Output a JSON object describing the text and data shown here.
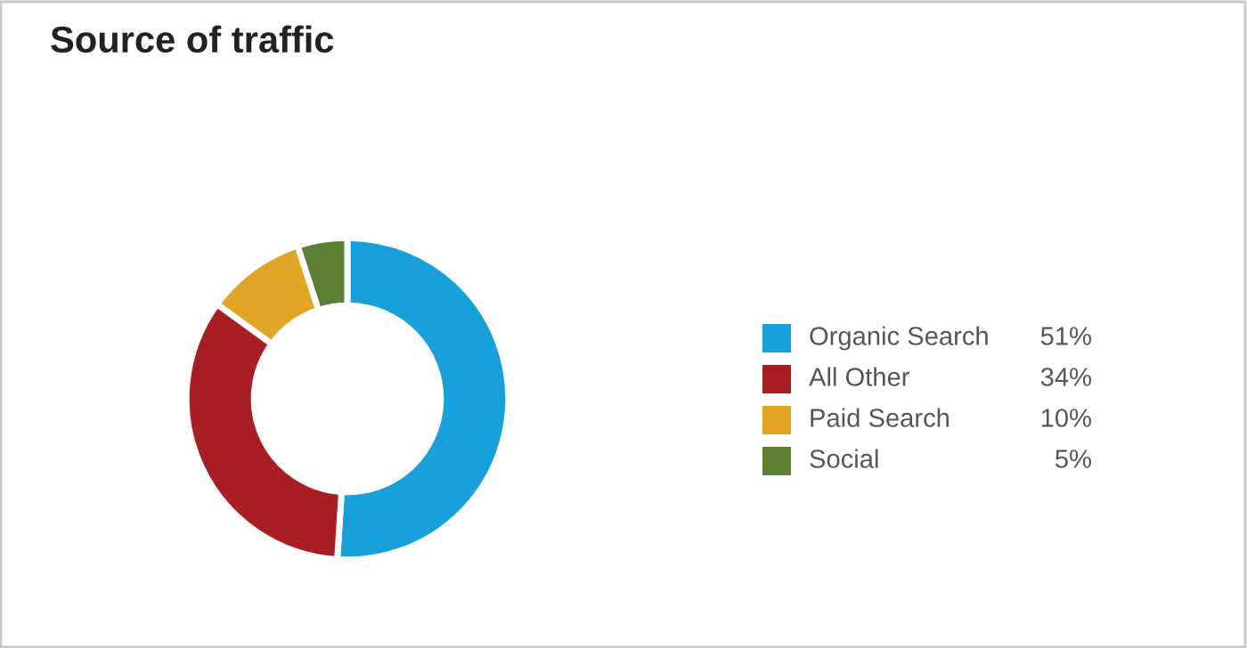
{
  "chart_data": {
    "type": "donut",
    "title": "Source of traffic",
    "categories": [
      "Organic Search",
      "All Other",
      "Paid Search",
      "Social"
    ],
    "values": [
      51,
      34,
      10,
      5
    ],
    "value_labels": [
      "51%",
      "34%",
      "10%",
      "5%"
    ],
    "colors": [
      "#18a0db",
      "#a81e22",
      "#e2a424",
      "#5a7f35"
    ],
    "legend": "right"
  }
}
